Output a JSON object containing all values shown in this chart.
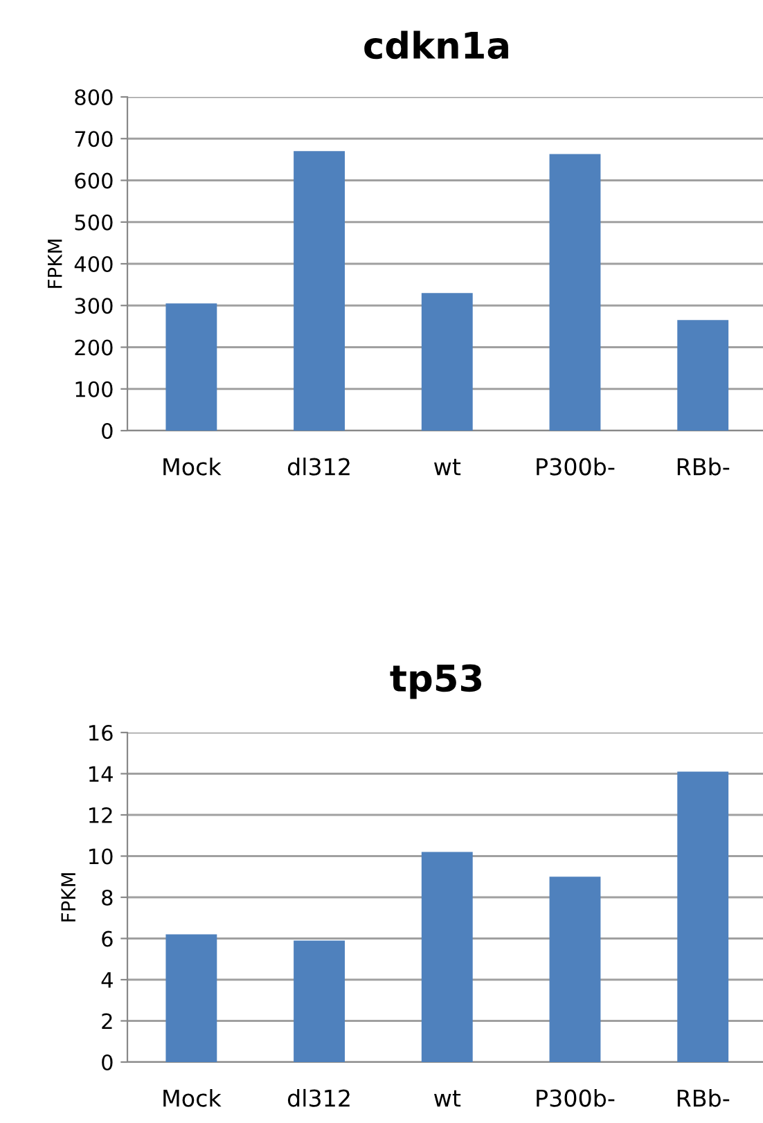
{
  "chart_data": [
    {
      "type": "bar",
      "title": "cdkn1a",
      "ylabel": "FPKM",
      "categories": [
        "Mock",
        "dl312",
        "wt",
        "P300b-",
        "RBb-"
      ],
      "values": [
        305,
        670,
        330,
        663,
        265
      ],
      "color": "#4f81bd",
      "ylim": [
        0,
        800
      ],
      "yticks": [
        0,
        100,
        200,
        300,
        400,
        500,
        600,
        700,
        800
      ],
      "grid": "y"
    },
    {
      "type": "bar",
      "title": "tp53",
      "ylabel": "FPKM",
      "categories": [
        "Mock",
        "dl312",
        "wt",
        "P300b-",
        "RBb-"
      ],
      "values": [
        6.2,
        5.9,
        10.2,
        9.0,
        14.1
      ],
      "color": "#4f81bd",
      "ylim": [
        0,
        16
      ],
      "yticks": [
        0,
        2,
        4,
        6,
        8,
        10,
        12,
        14,
        16
      ],
      "grid": "y"
    }
  ]
}
